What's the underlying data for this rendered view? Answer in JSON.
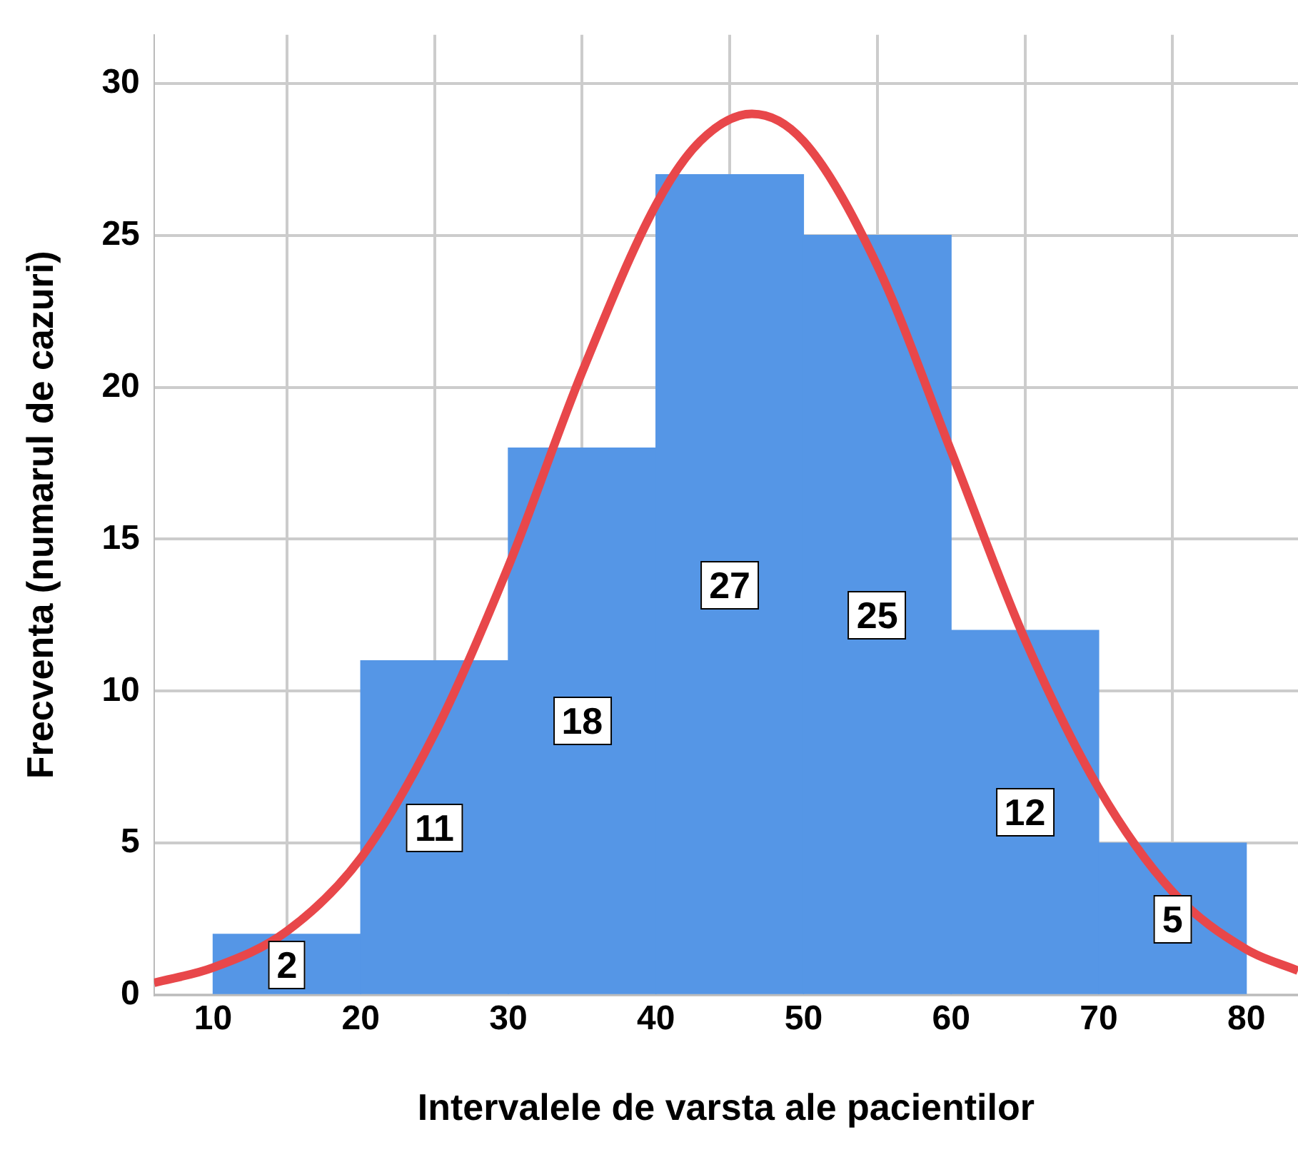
{
  "chart_data": {
    "type": "histogram",
    "xlabel": "Intervalele de varsta ale pacientilor",
    "ylabel": "Frecventa (numarul de cazuri)",
    "bins": [
      10,
      20,
      30,
      40,
      50,
      60,
      70,
      80
    ],
    "values": [
      2,
      11,
      18,
      27,
      25,
      12,
      5
    ],
    "color": "#5596e6",
    "value_labels": [
      "2",
      "11",
      "18",
      "27",
      "25",
      "12",
      "5"
    ],
    "series": [
      {
        "type": "line",
        "color": "#e8474a",
        "x": [
          6,
          10,
          15,
          20,
          25,
          30,
          35,
          40,
          43,
          46.5,
          50,
          55,
          60,
          65,
          70,
          75,
          80,
          83.5
        ],
        "values": [
          0.4,
          0.9,
          2.1,
          4.5,
          8.6,
          14.1,
          20.5,
          26,
          28.1,
          29,
          28.1,
          24,
          17.9,
          11.7,
          6.8,
          3.4,
          1.5,
          0.8
        ]
      }
    ],
    "xlim": [
      6,
      83.5
    ],
    "xticks": [
      10,
      20,
      30,
      40,
      50,
      60,
      70,
      80
    ],
    "ylim": [
      0,
      31.6
    ],
    "yticks": [
      0,
      5,
      10,
      15,
      20,
      25,
      30
    ],
    "grid": true
  }
}
